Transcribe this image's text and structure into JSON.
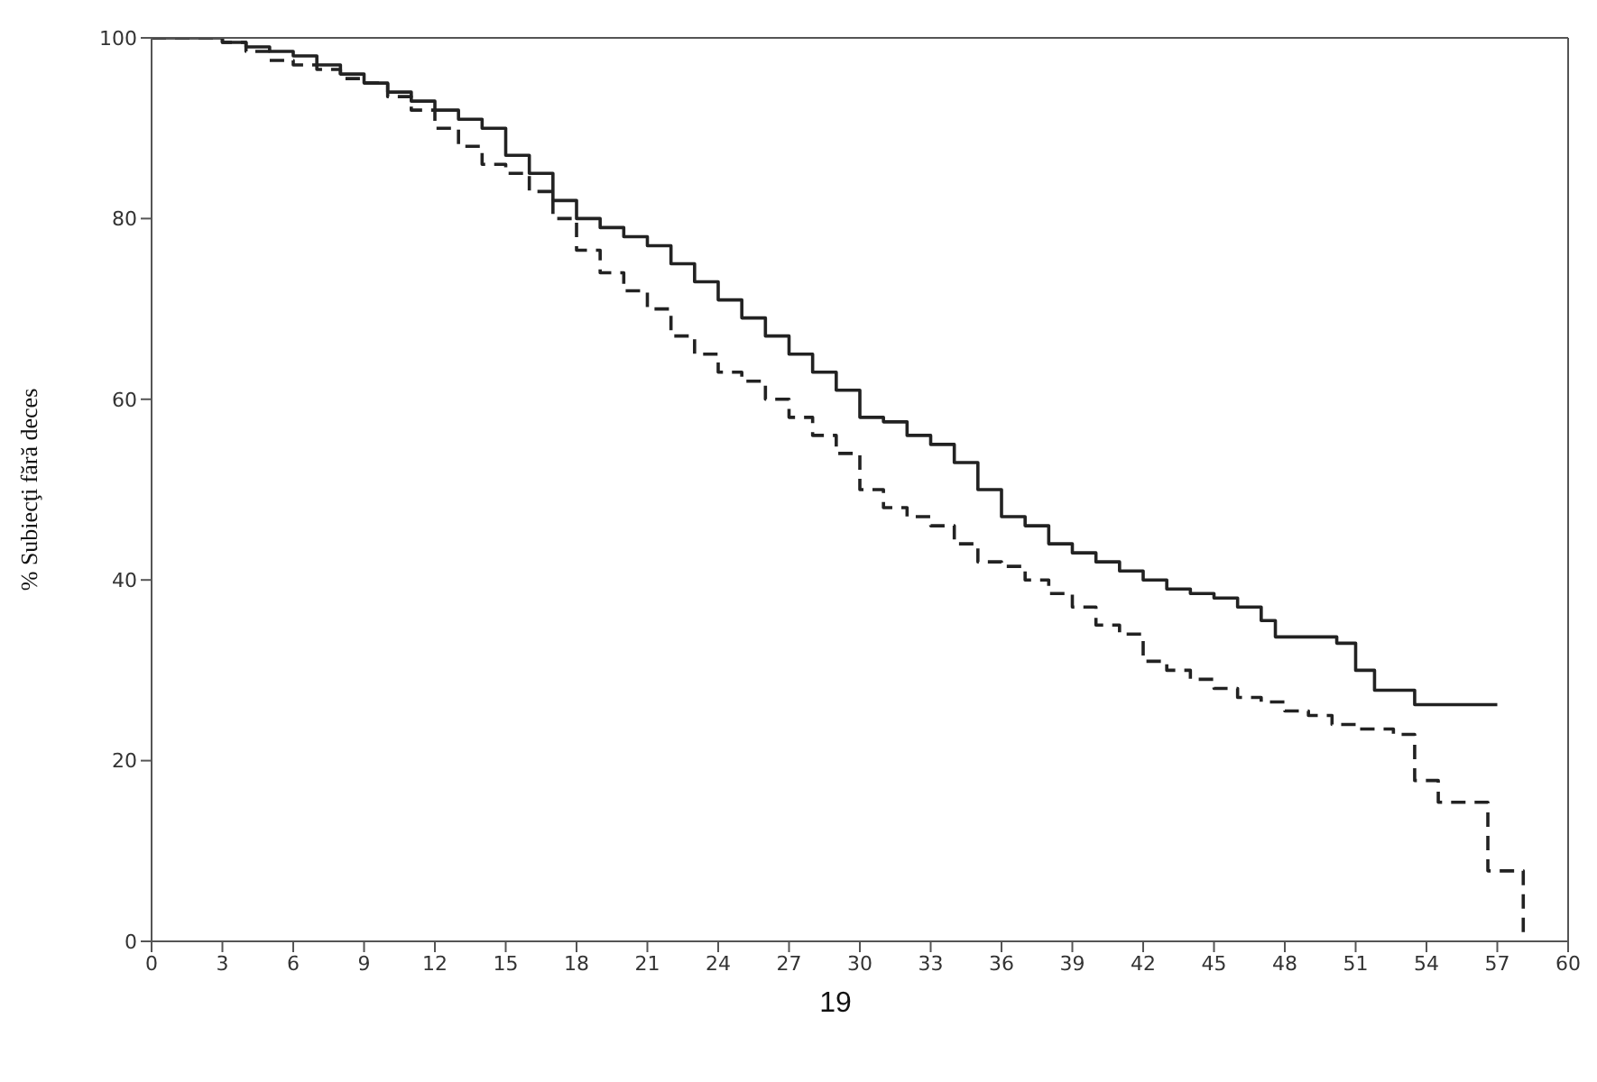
{
  "chart_data": {
    "type": "step",
    "ylabel": "% Subiecţi fără deces",
    "annotations": [
      "19"
    ],
    "xlim": [
      0,
      60
    ],
    "xticks": [
      0,
      3,
      6,
      9,
      12,
      15,
      18,
      21,
      24,
      27,
      30,
      33,
      36,
      39,
      42,
      45,
      48,
      51,
      54,
      57,
      60
    ],
    "ylim": [
      0,
      100
    ],
    "yticks": [
      0,
      20,
      40,
      60,
      80,
      100
    ],
    "marker": "none",
    "series": [
      {
        "color": "#222222",
        "line_style": "solid",
        "x": [
          0,
          2,
          3,
          4,
          5,
          6,
          7,
          8,
          9,
          10,
          11,
          12,
          13,
          14,
          15,
          16,
          17,
          18,
          19,
          20,
          21,
          22,
          23,
          24,
          25,
          26,
          27,
          28,
          29,
          30,
          31,
          32,
          33,
          34,
          35,
          36,
          37,
          38,
          39,
          40,
          41,
          42,
          43,
          44,
          45,
          46,
          47,
          47.6,
          50.2,
          51,
          51.8,
          53.5,
          57
        ],
        "values": [
          100,
          100,
          99.5,
          99,
          98.5,
          98,
          97,
          96,
          95,
          94,
          93,
          92,
          91,
          90,
          87,
          85,
          82,
          80,
          79,
          78,
          77,
          75,
          73,
          71,
          69,
          67,
          65,
          63,
          61,
          58,
          57.5,
          56,
          55,
          53,
          50,
          47,
          46,
          44,
          43,
          42,
          41,
          40,
          39,
          38.5,
          38,
          37,
          35.5,
          33.7,
          33,
          30,
          27.8,
          26.2,
          26.2
        ]
      },
      {
        "color": "#222222",
        "line_style": "dashed",
        "x": [
          0,
          3,
          4,
          5,
          6,
          7,
          8,
          9,
          10,
          11,
          12,
          13,
          14,
          15,
          16,
          17,
          18,
          19,
          20,
          21,
          22,
          23,
          24,
          25,
          26,
          27,
          28,
          29,
          30,
          31,
          32,
          33,
          34,
          35,
          36,
          37,
          38,
          39,
          40,
          41,
          42,
          43,
          44,
          45,
          46,
          47,
          48,
          49,
          50,
          51,
          52.6,
          53.5,
          54.5,
          56.6,
          58.1
        ],
        "values": [
          100,
          99.5,
          98.5,
          97.5,
          97,
          96.5,
          95.5,
          95,
          93.5,
          92,
          90,
          88,
          86,
          85,
          83,
          80,
          76.5,
          74,
          72,
          70,
          67,
          65,
          63,
          62,
          60,
          58,
          56,
          54,
          50,
          48,
          47,
          46,
          44,
          42,
          41.5,
          40,
          38.5,
          37,
          35,
          34,
          31,
          30,
          29,
          28,
          27,
          26.5,
          25.5,
          25,
          24,
          23.5,
          22.9,
          17.8,
          15.4,
          7.8,
          0
        ]
      }
    ]
  }
}
